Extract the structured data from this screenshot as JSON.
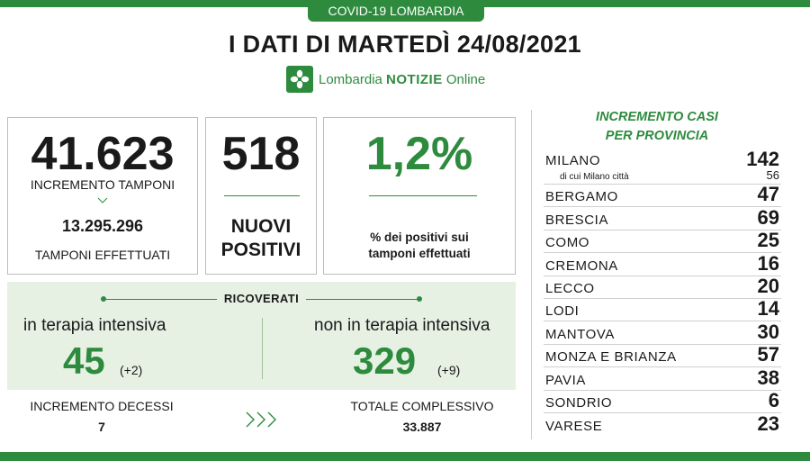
{
  "header": {
    "tag": "COVID-19 LOMBARDIA",
    "title": "I DATI DI MARTEDÌ 24/08/2021",
    "brand_regular": "Lombardia ",
    "brand_bold": "NOTIZIE",
    "brand_suffix": " Online"
  },
  "tamponi": {
    "increment": "41.623",
    "increment_label": "INCREMENTO TAMPONI",
    "total": "13.295.296",
    "total_label": "TAMPONI EFFETTUATI"
  },
  "positivi": {
    "value": "518",
    "label_line1": "NUOVI",
    "label_line2": "POSITIVI"
  },
  "rapporto": {
    "value": "1,2%",
    "label_line1": "% dei positivi sui",
    "label_line2": "tamponi effettuati"
  },
  "ricoverati": {
    "title": "RICOVERATI",
    "intensiva_label": "in terapia intensiva",
    "intensiva_value": "45",
    "intensiva_delta": "(+2)",
    "non_intensiva_label": "non in terapia intensiva",
    "non_intensiva_value": "329",
    "non_intensiva_delta": "(+9)"
  },
  "decessi": {
    "label": "INCREMENTO DECESSI",
    "value": "7",
    "total_label": "TOTALE COMPLESSIVO",
    "total_value": "33.887"
  },
  "province": {
    "title_line1": "INCREMENTO CASI",
    "title_line2": "PER PROVINCIA",
    "milano": {
      "name": "MILANO",
      "value": "142",
      "sub_label": "di cui Milano città",
      "sub_value": "56"
    },
    "items": [
      {
        "name": "BERGAMO",
        "value": "47"
      },
      {
        "name": "BRESCIA",
        "value": "69"
      },
      {
        "name": "COMO",
        "value": "25"
      },
      {
        "name": "CREMONA",
        "value": "16"
      },
      {
        "name": "LECCO",
        "value": "20"
      },
      {
        "name": "LODI",
        "value": "14"
      },
      {
        "name": "MANTOVA",
        "value": "30"
      },
      {
        "name": "MONZA E BRIANZA",
        "value": "57"
      },
      {
        "name": "PAVIA",
        "value": "38"
      },
      {
        "name": "SONDRIO",
        "value": "6"
      },
      {
        "name": "VARESE",
        "value": "23"
      }
    ]
  },
  "colors": {
    "accent": "#2e8b3e",
    "panel": "#e6f1e4"
  }
}
